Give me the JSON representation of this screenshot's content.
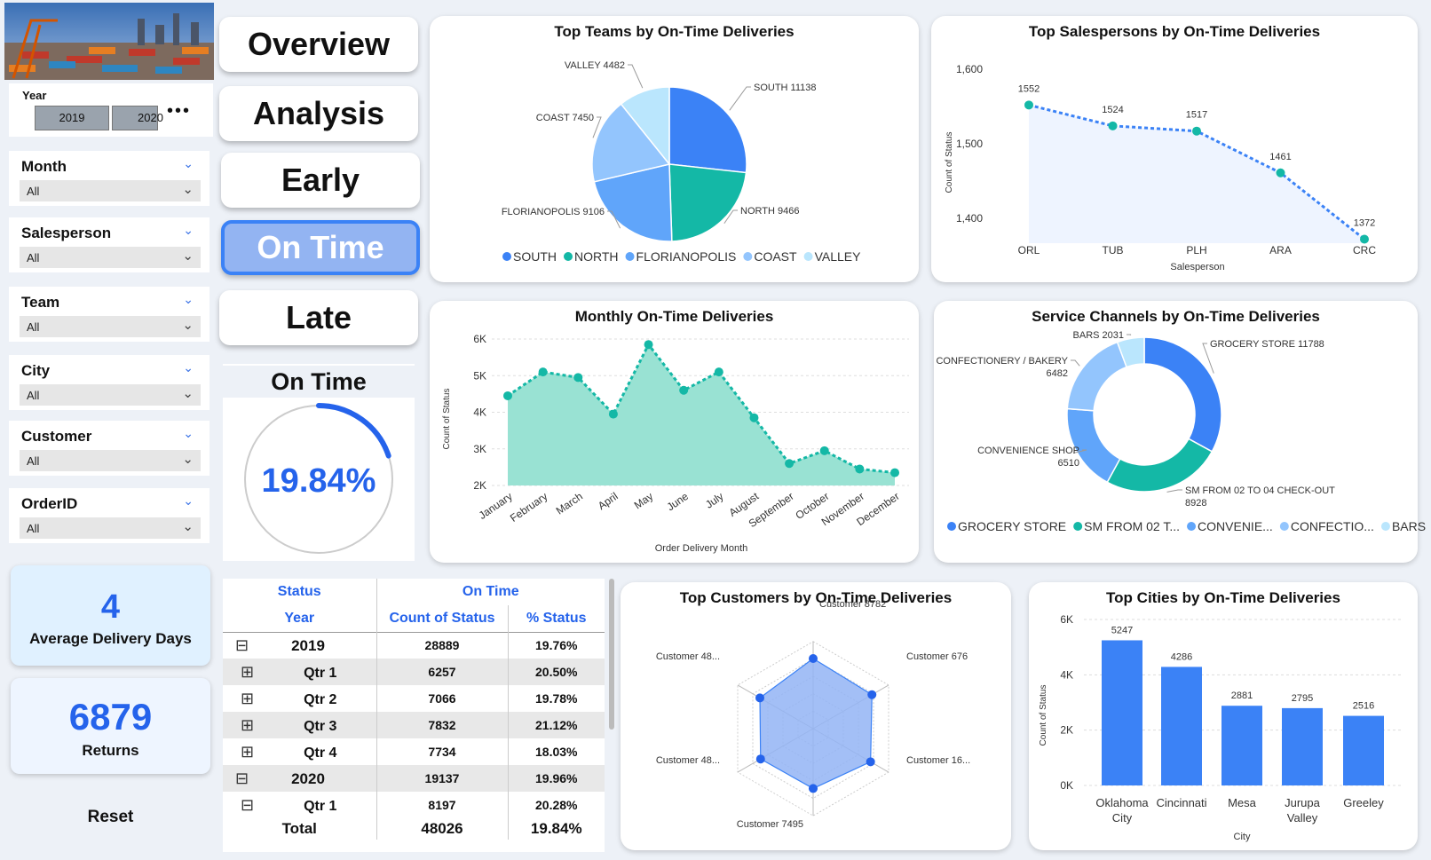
{
  "year_slicer": {
    "title": "Year",
    "options": [
      "2019",
      "2020"
    ]
  },
  "slicers": [
    {
      "title": "Month",
      "value": "All"
    },
    {
      "title": "Salesperson",
      "value": "All"
    },
    {
      "title": "Team",
      "value": "All"
    },
    {
      "title": "City",
      "value": "All"
    },
    {
      "title": "Customer",
      "value": "All"
    },
    {
      "title": "OrderID",
      "value": "All"
    }
  ],
  "nav": {
    "overview": "Overview",
    "analysis": "Analysis",
    "early": "Early",
    "on_time": "On Time",
    "late": "Late"
  },
  "gauge": {
    "title": "On Time",
    "value_label": "19.84%",
    "fraction": 0.1984
  },
  "kpi_days": {
    "value": "4",
    "label": "Average Delivery Days"
  },
  "kpi_returns": {
    "value": "6879",
    "label": "Returns"
  },
  "reset_label": "Reset",
  "colors": {
    "accent": "#3b82f6",
    "teal": "#14b8a6",
    "nav_active": "#93b4f2"
  },
  "table": {
    "h1": [
      "Status",
      "On Time"
    ],
    "h2": [
      "Year",
      "Count of Status",
      "% Status"
    ],
    "rows": [
      {
        "label": "2019",
        "count": "28889",
        "pct": "19.76%",
        "toggle": "⊟",
        "level": 0
      },
      {
        "label": "Qtr 1",
        "count": "6257",
        "pct": "20.50%",
        "toggle": "⊞",
        "level": 1
      },
      {
        "label": "Qtr 2",
        "count": "7066",
        "pct": "19.78%",
        "toggle": "⊞",
        "level": 1
      },
      {
        "label": "Qtr 3",
        "count": "7832",
        "pct": "21.12%",
        "toggle": "⊞",
        "level": 1
      },
      {
        "label": "Qtr 4",
        "count": "7734",
        "pct": "18.03%",
        "toggle": "⊞",
        "level": 1
      },
      {
        "label": "2020",
        "count": "19137",
        "pct": "19.96%",
        "toggle": "⊟",
        "level": 0
      },
      {
        "label": "Qtr 1",
        "count": "8197",
        "pct": "20.28%",
        "toggle": "⊟",
        "level": 1
      }
    ],
    "total": {
      "label": "Total",
      "count": "48026",
      "pct": "19.84%"
    }
  },
  "chart_data": [
    {
      "id": "teams",
      "type": "pie",
      "title": "Top Teams by On-Time Deliveries",
      "slices": [
        {
          "name": "SOUTH",
          "value": 11138,
          "label": "SOUTH 11138",
          "color": "#3b82f6"
        },
        {
          "name": "NORTH",
          "value": 9466,
          "label": "NORTH 9466",
          "color": "#14b8a6"
        },
        {
          "name": "FLORIANOPOLIS",
          "value": 9106,
          "label": "FLORIANOPOLIS 9106",
          "color": "#60a5fa"
        },
        {
          "name": "COAST",
          "value": 7450,
          "label": "COAST 7450",
          "color": "#93c5fd"
        },
        {
          "name": "VALLEY",
          "value": 4482,
          "label": "VALLEY 4482",
          "color": "#bae6fd"
        }
      ],
      "legend": [
        "SOUTH",
        "NORTH",
        "FLORIANOPOLIS",
        "COAST",
        "VALLEY"
      ]
    },
    {
      "id": "salespersons",
      "type": "line",
      "title": "Top Salespersons by On-Time Deliveries",
      "categories": [
        "ORL",
        "TUB",
        "PLH",
        "ARA",
        "CRC"
      ],
      "values": [
        1552,
        1524,
        1517,
        1461,
        1372
      ],
      "xlabel": "Salesperson",
      "ylabel": "Count of Status",
      "ylim": [
        1380,
        1600
      ],
      "yticks": [
        "1,600",
        "1,500",
        "1,400"
      ]
    },
    {
      "id": "monthly",
      "type": "area",
      "title": "Monthly On-Time Deliveries",
      "categories": [
        "January",
        "February",
        "March",
        "April",
        "May",
        "June",
        "July",
        "August",
        "September",
        "October",
        "November",
        "December"
      ],
      "values": [
        4450,
        5100,
        4950,
        3950,
        5850,
        4600,
        5100,
        3850,
        2600,
        2950,
        2450,
        2350
      ],
      "xlabel": "Order Delivery Month",
      "ylabel": "Count of Status",
      "ylim": [
        2000,
        6000
      ],
      "yticks": [
        "6K",
        "5K",
        "4K",
        "3K",
        "2K"
      ]
    },
    {
      "id": "channels",
      "type": "pie",
      "title": "Service Channels by On-Time Deliveries",
      "slices": [
        {
          "name": "GROCERY STORE",
          "value": 11788,
          "label": "GROCERY STORE 11788",
          "color": "#3b82f6"
        },
        {
          "name": "SM FROM 02 TO 04 CHECK-OUT",
          "value": 8928,
          "label": "SM FROM 02 TO 04 CHECK-OUT",
          "value_label": "8928",
          "color": "#14b8a6"
        },
        {
          "name": "CONVENIENCE SHOP",
          "value": 6510,
          "label": "CONVENIENCE SHOP",
          "value_label": "6510",
          "color": "#60a5fa"
        },
        {
          "name": "CONFECTIONERY / BAKERY",
          "value": 6482,
          "label": "CONFECTIONERY / BAKERY",
          "value_label": "6482",
          "color": "#93c5fd"
        },
        {
          "name": "BARS",
          "value": 2031,
          "label": "BARS 2031",
          "color": "#bae6fd"
        }
      ],
      "legend": [
        "GROCERY STORE",
        "SM FROM 02 T...",
        "CONVENIE...",
        "CONFECTIO...",
        "BARS"
      ]
    },
    {
      "id": "customers",
      "type": "radar",
      "title": "Top Customers by On-Time Deliveries",
      "axes": [
        "Customer 8782",
        "Customer 676",
        "Customer 16...",
        "Customer 7495",
        "Customer 48...",
        "Customer 48..."
      ],
      "values": [
        8782,
        8500,
        8300,
        7495,
        7600,
        7700
      ],
      "rmax": 12000
    },
    {
      "id": "cities",
      "type": "bar",
      "title": "Top Cities by On-Time Deliveries",
      "categories": [
        "Oklahoma City",
        "Cincinnati",
        "Mesa",
        "Jurupa Valley",
        "Greeley"
      ],
      "cat_lines": [
        [
          "Oklahoma",
          "City"
        ],
        [
          "Cincinnati"
        ],
        [
          "Mesa"
        ],
        [
          "Jurupa",
          "Valley"
        ],
        [
          "Greeley"
        ]
      ],
      "values": [
        5247,
        4286,
        2881,
        2795,
        2516
      ],
      "xlabel": "City",
      "ylabel": "Count of Status",
      "ylim": [
        0,
        6000
      ],
      "yticks": [
        "6K",
        "4K",
        "2K",
        "0K"
      ]
    }
  ]
}
